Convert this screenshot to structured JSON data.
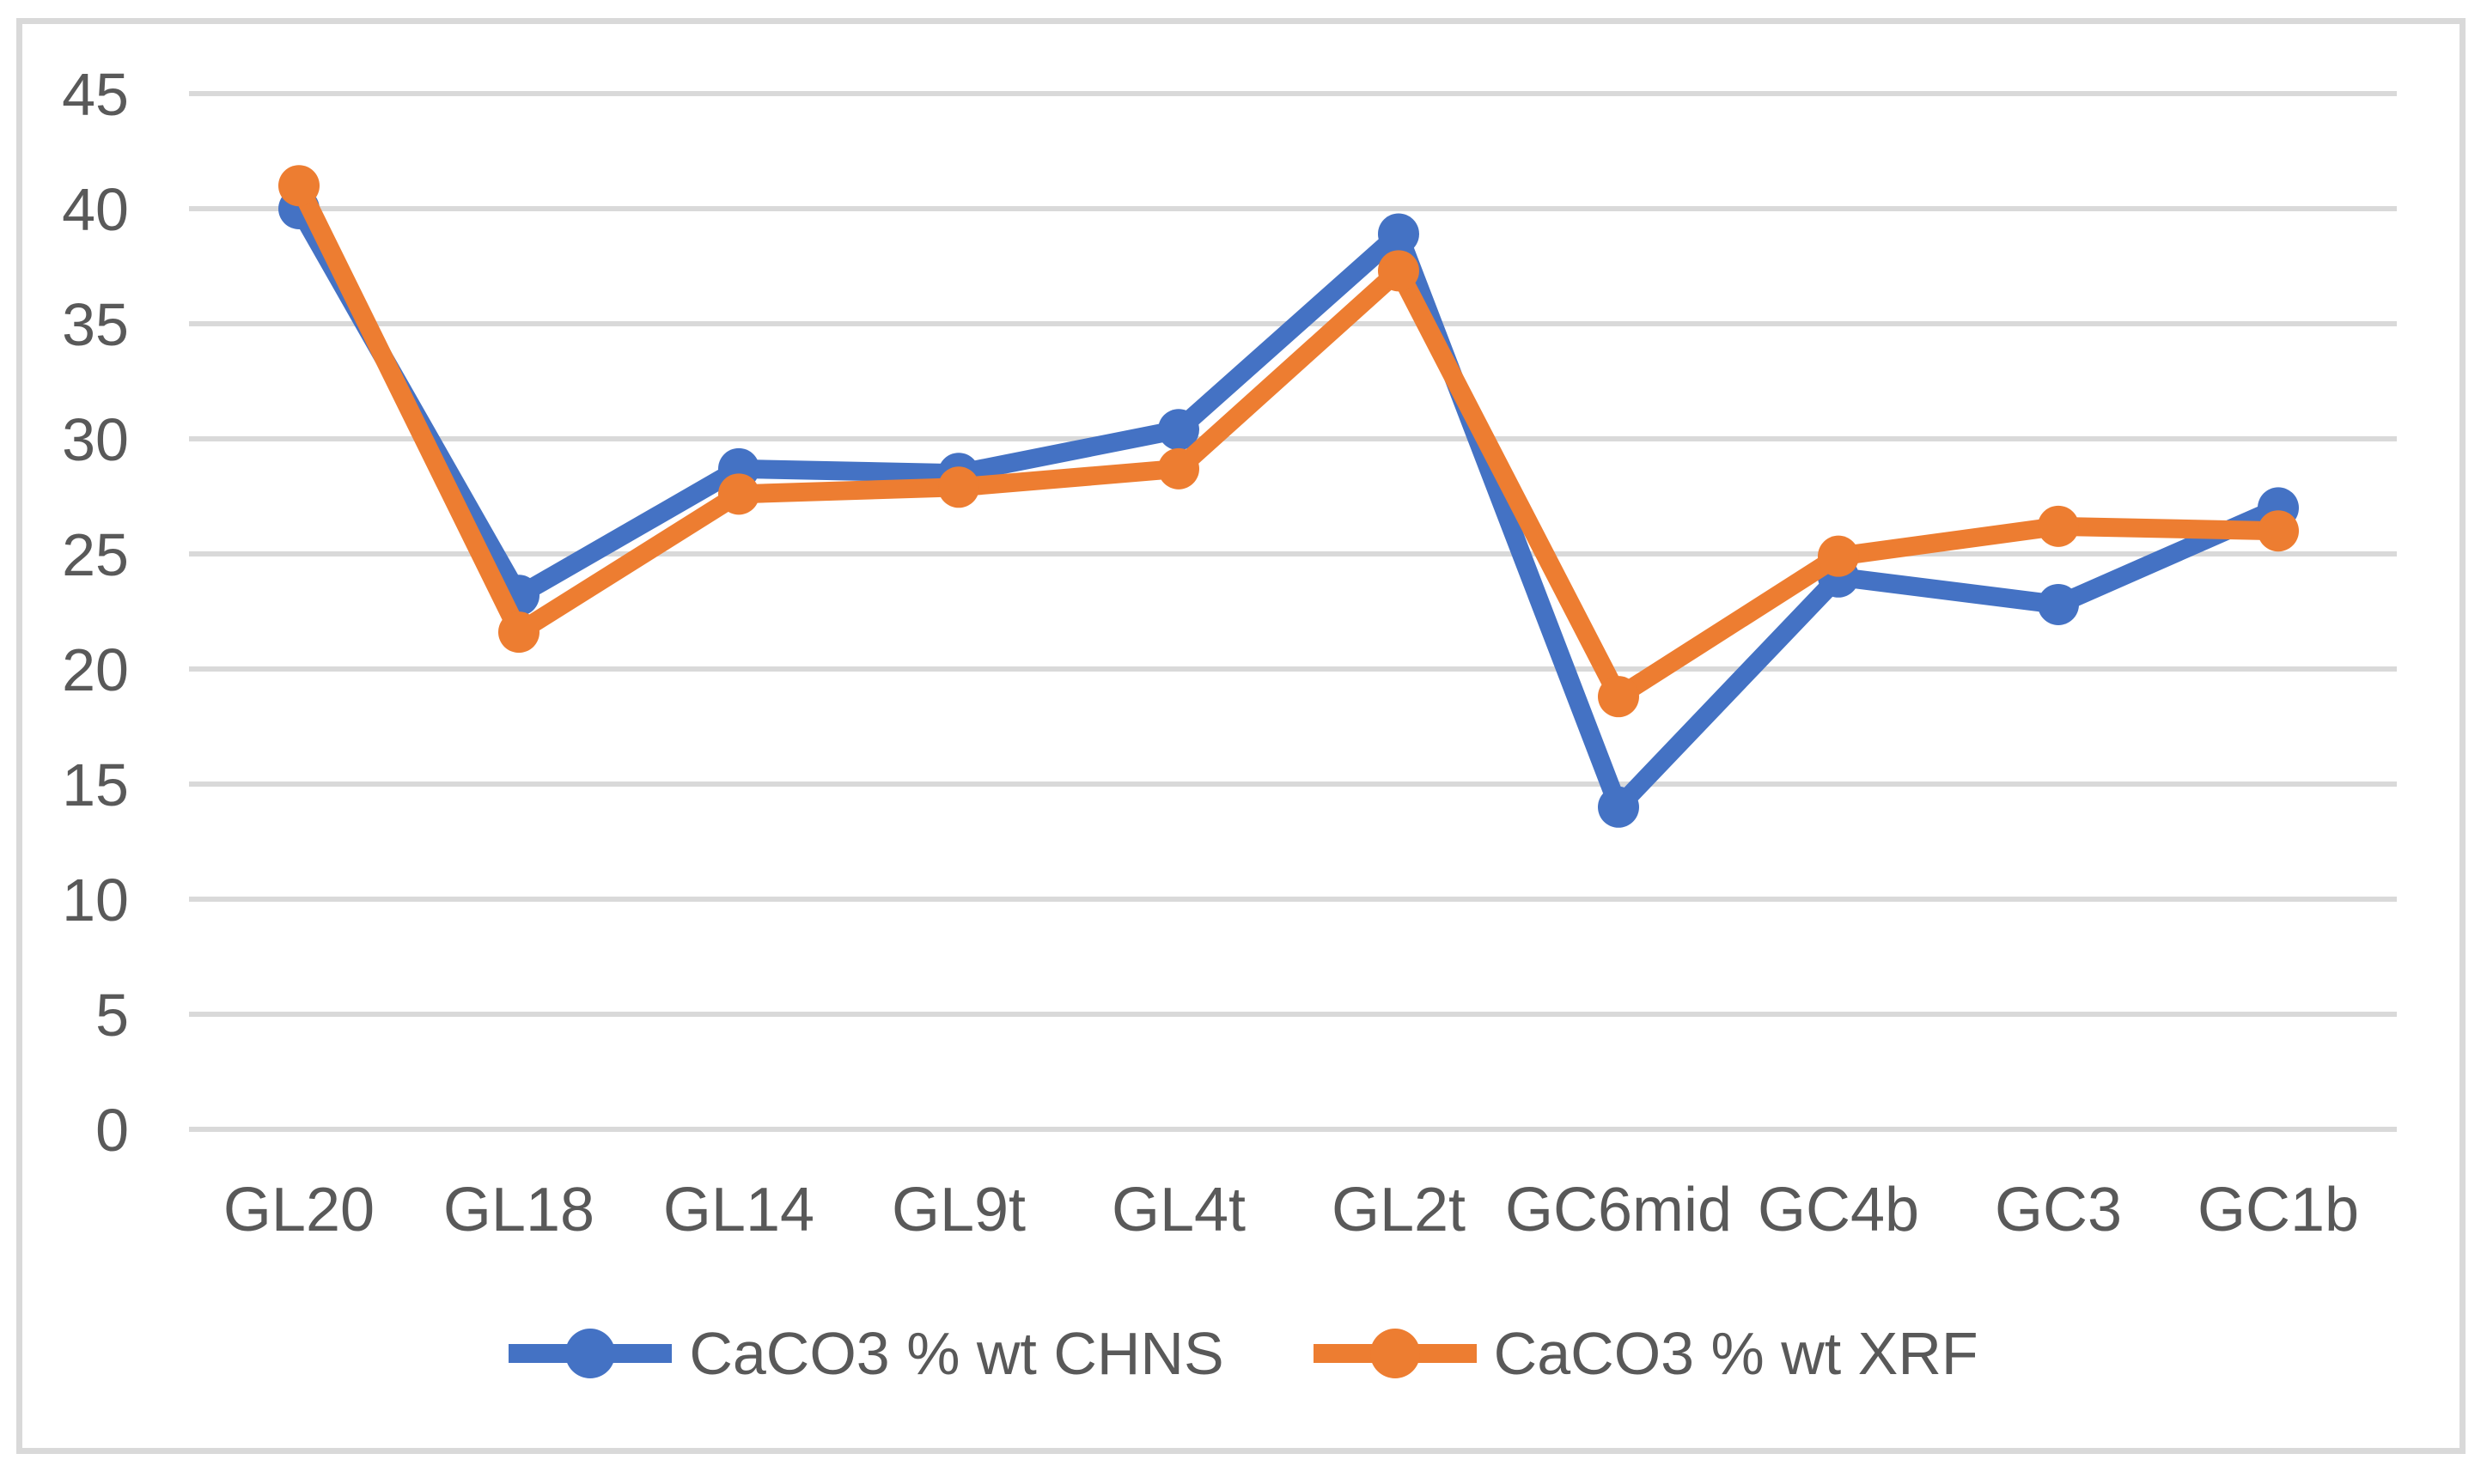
{
  "chart_data": {
    "type": "line",
    "title": "",
    "xlabel": "",
    "ylabel": "",
    "categories": [
      "GL20",
      "GL18",
      "GL14",
      "GL9t",
      "GL4t",
      "GL2t",
      "GC6mid",
      "GC4b",
      "GC3",
      "GC1b"
    ],
    "series": [
      {
        "name": "CaCO3 % wt CHNS",
        "color": "#4472C4",
        "values": [
          40.0,
          23.2,
          28.7,
          28.5,
          30.4,
          38.9,
          14.0,
          24.0,
          22.8,
          27.0
        ]
      },
      {
        "name": "CaCO3 % wt XRF",
        "color": "#ED7D31",
        "values": [
          41.0,
          21.6,
          27.6,
          27.9,
          28.7,
          37.3,
          18.8,
          24.9,
          26.2,
          26.0
        ]
      }
    ],
    "ylim": [
      0,
      45
    ],
    "yticks": [
      0,
      5,
      10,
      15,
      20,
      25,
      30,
      35,
      40,
      45
    ],
    "grid": "horizontal",
    "legend_position": "bottom",
    "marker": "circle"
  },
  "style": {
    "grid_color": "#D9D9D9",
    "border_color": "#D9D9D9",
    "text_color": "#595959",
    "background": "#FFFFFF"
  }
}
